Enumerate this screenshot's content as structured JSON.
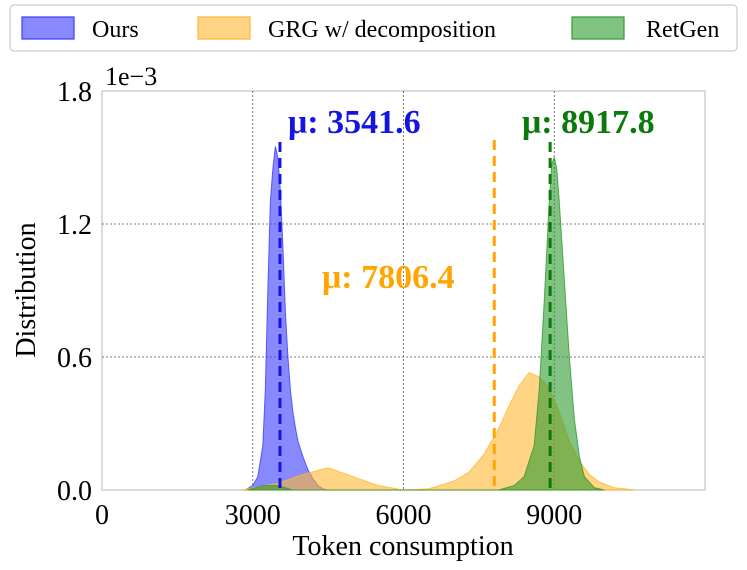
{
  "chart_data": {
    "type": "area",
    "xlabel": "Token consumption",
    "ylabel": "Distribution",
    "y_multiplier_label": "1e−3",
    "xlim": [
      0,
      12000
    ],
    "ylim": [
      0,
      1.8
    ],
    "x_ticks": [
      0,
      3000,
      6000,
      9000
    ],
    "x_tick_labels": [
      "0",
      "3000",
      "6000",
      "9000"
    ],
    "y_ticks": [
      0,
      0.6,
      1.2,
      1.8
    ],
    "y_tick_labels": [
      "0.0",
      "0.6",
      "1.2",
      "1.8"
    ],
    "grid": true,
    "legend_position": "top",
    "series": [
      {
        "name": "Ours",
        "color": "#3b3bff",
        "mean": 3541.6,
        "mean_label": "μ: 3541.6",
        "x": [
          2850,
          3000,
          3100,
          3200,
          3250,
          3300,
          3350,
          3400,
          3450,
          3500,
          3550,
          3600,
          3650,
          3700,
          3750,
          3800,
          3850,
          3900,
          4000,
          4100,
          4200,
          4300,
          4400,
          4500
        ],
        "y": [
          0.0,
          0.02,
          0.06,
          0.2,
          0.45,
          0.9,
          1.3,
          1.45,
          1.55,
          1.5,
          1.35,
          1.1,
          0.8,
          0.6,
          0.45,
          0.35,
          0.28,
          0.22,
          0.15,
          0.09,
          0.05,
          0.02,
          0.005,
          0.0
        ]
      },
      {
        "name": "GRG w/ decomposition",
        "color": "#ffb732",
        "mean": 7806.4,
        "mean_label": "μ: 7806.4",
        "x": [
          2800,
          3000,
          3500,
          4000,
          4500,
          5000,
          5500,
          6000,
          6500,
          7000,
          7300,
          7600,
          7900,
          8100,
          8300,
          8500,
          8700,
          8900,
          9100,
          9300,
          9500,
          9700,
          9900,
          10200,
          10600
        ],
        "y": [
          0.0,
          0.01,
          0.03,
          0.07,
          0.1,
          0.06,
          0.02,
          0.0,
          0.005,
          0.04,
          0.08,
          0.16,
          0.28,
          0.38,
          0.47,
          0.53,
          0.51,
          0.46,
          0.35,
          0.22,
          0.13,
          0.07,
          0.035,
          0.01,
          0.0
        ]
      },
      {
        "name": "RetGen",
        "color": "#2e9a2e",
        "mean": 8917.8,
        "mean_label": "μ: 8917.8",
        "x": [
          2900,
          3200,
          3500,
          3800,
          7900,
          8200,
          8400,
          8600,
          8700,
          8800,
          8900,
          8950,
          9000,
          9050,
          9100,
          9200,
          9300,
          9400,
          9500,
          9600,
          9800,
          10000
        ],
        "y": [
          0.0,
          0.02,
          0.02,
          0.0,
          0.0,
          0.02,
          0.06,
          0.2,
          0.45,
          0.85,
          1.3,
          1.47,
          1.5,
          1.45,
          1.3,
          0.95,
          0.6,
          0.32,
          0.15,
          0.06,
          0.01,
          0.0
        ]
      }
    ]
  }
}
